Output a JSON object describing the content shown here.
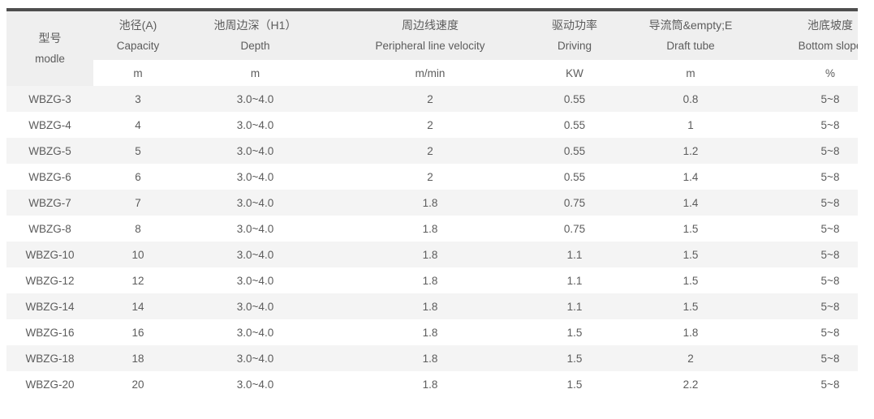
{
  "page": {
    "background_color": "#ffffff",
    "accent_border_color": "#4e4e4e",
    "header_bg_color": "#efefef",
    "stripe_bg_color": "#f4f4f4",
    "text_color": "#5c5c5c"
  },
  "table": {
    "columns": [
      {
        "zh": "型号",
        "en": "modle",
        "unit": ""
      },
      {
        "zh": "池径(A)",
        "en": "Capacity",
        "unit": "m"
      },
      {
        "zh": "池周边深（H1）",
        "en": "Depth",
        "unit": "m"
      },
      {
        "zh": "周边线速度",
        "en": "Peripheral line velocity",
        "unit": "m/min"
      },
      {
        "zh": "驱动功率",
        "en": "Driving",
        "unit": "KW"
      },
      {
        "zh": "导流筒&empty;E",
        "en": "Draft tube",
        "unit": "m"
      },
      {
        "zh": "池底坡度",
        "en": "Bottom slope",
        "unit": "%"
      }
    ],
    "rows": [
      [
        "WBZG-3",
        "3",
        "3.0~4.0",
        "2",
        "0.55",
        "0.8",
        "5~8"
      ],
      [
        "WBZG-4",
        "4",
        "3.0~4.0",
        "2",
        "0.55",
        "1",
        "5~8"
      ],
      [
        "WBZG-5",
        "5",
        "3.0~4.0",
        "2",
        "0.55",
        "1.2",
        "5~8"
      ],
      [
        "WBZG-6",
        "6",
        "3.0~4.0",
        "2",
        "0.55",
        "1.4",
        "5~8"
      ],
      [
        "WBZG-7",
        "7",
        "3.0~4.0",
        "1.8",
        "0.75",
        "1.4",
        "5~8"
      ],
      [
        "WBZG-8",
        "8",
        "3.0~4.0",
        "1.8",
        "0.75",
        "1.5",
        "5~8"
      ],
      [
        "WBZG-10",
        "10",
        "3.0~4.0",
        "1.8",
        "1.1",
        "1.5",
        "5~8"
      ],
      [
        "WBZG-12",
        "12",
        "3.0~4.0",
        "1.8",
        "1.1",
        "1.5",
        "5~8"
      ],
      [
        "WBZG-14",
        "14",
        "3.0~4.0",
        "1.8",
        "1.1",
        "1.5",
        "5~8"
      ],
      [
        "WBZG-16",
        "16",
        "3.0~4.0",
        "1.8",
        "1.5",
        "1.8",
        "5~8"
      ],
      [
        "WBZG-18",
        "18",
        "3.0~4.0",
        "1.8",
        "1.5",
        "2",
        "5~8"
      ],
      [
        "WBZG-20",
        "20",
        "3.0~4.0",
        "1.8",
        "1.5",
        "2.2",
        "5~8"
      ]
    ]
  }
}
